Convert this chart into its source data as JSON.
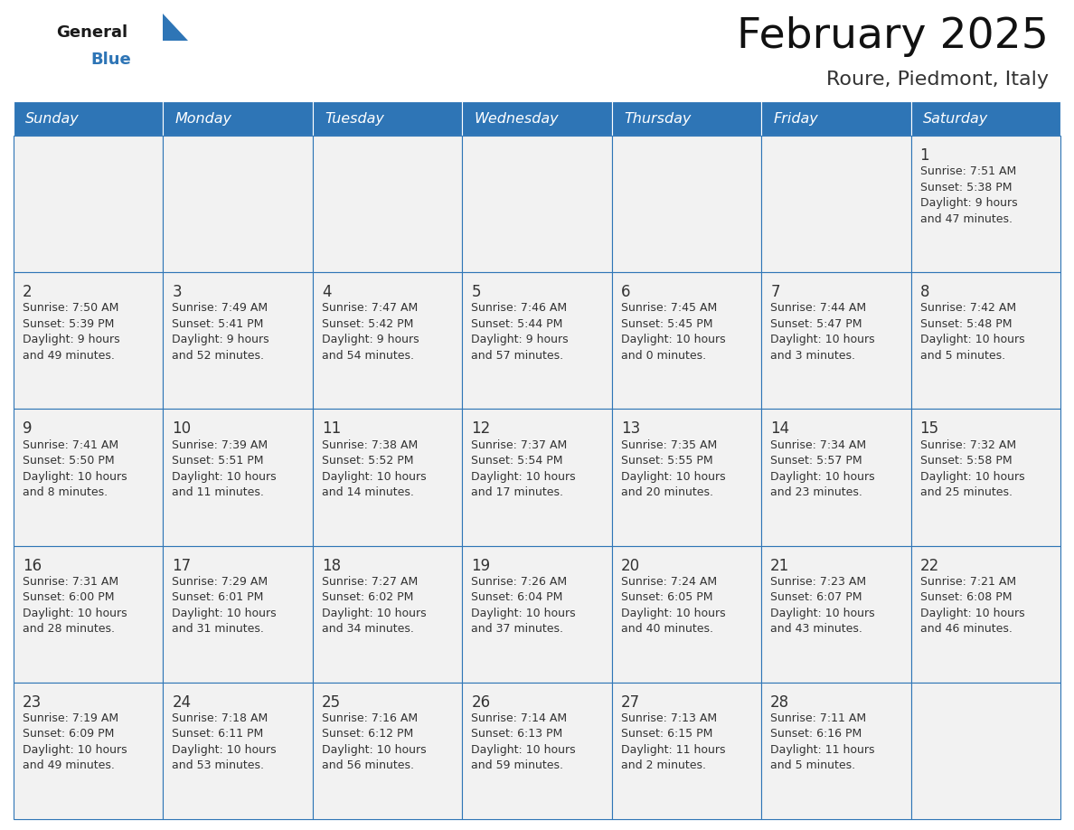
{
  "title": "February 2025",
  "subtitle": "Roure, Piedmont, Italy",
  "header_bg": "#2E75B6",
  "header_text_color": "#FFFFFF",
  "cell_bg": "#F2F2F2",
  "cell_border_color": "#2E75B6",
  "day_number_color": "#333333",
  "cell_text_color": "#333333",
  "days_of_week": [
    "Sunday",
    "Monday",
    "Tuesday",
    "Wednesday",
    "Thursday",
    "Friday",
    "Saturday"
  ],
  "logo_general_color": "#1A1A1A",
  "logo_blue_color": "#2E75B6",
  "calendar_data": [
    [
      null,
      null,
      null,
      null,
      null,
      null,
      {
        "day": 1,
        "sunrise": "7:51 AM",
        "sunset": "5:38 PM",
        "daylight": "9 hours\nand 47 minutes."
      }
    ],
    [
      {
        "day": 2,
        "sunrise": "7:50 AM",
        "sunset": "5:39 PM",
        "daylight": "9 hours\nand 49 minutes."
      },
      {
        "day": 3,
        "sunrise": "7:49 AM",
        "sunset": "5:41 PM",
        "daylight": "9 hours\nand 52 minutes."
      },
      {
        "day": 4,
        "sunrise": "7:47 AM",
        "sunset": "5:42 PM",
        "daylight": "9 hours\nand 54 minutes."
      },
      {
        "day": 5,
        "sunrise": "7:46 AM",
        "sunset": "5:44 PM",
        "daylight": "9 hours\nand 57 minutes."
      },
      {
        "day": 6,
        "sunrise": "7:45 AM",
        "sunset": "5:45 PM",
        "daylight": "10 hours\nand 0 minutes."
      },
      {
        "day": 7,
        "sunrise": "7:44 AM",
        "sunset": "5:47 PM",
        "daylight": "10 hours\nand 3 minutes."
      },
      {
        "day": 8,
        "sunrise": "7:42 AM",
        "sunset": "5:48 PM",
        "daylight": "10 hours\nand 5 minutes."
      }
    ],
    [
      {
        "day": 9,
        "sunrise": "7:41 AM",
        "sunset": "5:50 PM",
        "daylight": "10 hours\nand 8 minutes."
      },
      {
        "day": 10,
        "sunrise": "7:39 AM",
        "sunset": "5:51 PM",
        "daylight": "10 hours\nand 11 minutes."
      },
      {
        "day": 11,
        "sunrise": "7:38 AM",
        "sunset": "5:52 PM",
        "daylight": "10 hours\nand 14 minutes."
      },
      {
        "day": 12,
        "sunrise": "7:37 AM",
        "sunset": "5:54 PM",
        "daylight": "10 hours\nand 17 minutes."
      },
      {
        "day": 13,
        "sunrise": "7:35 AM",
        "sunset": "5:55 PM",
        "daylight": "10 hours\nand 20 minutes."
      },
      {
        "day": 14,
        "sunrise": "7:34 AM",
        "sunset": "5:57 PM",
        "daylight": "10 hours\nand 23 minutes."
      },
      {
        "day": 15,
        "sunrise": "7:32 AM",
        "sunset": "5:58 PM",
        "daylight": "10 hours\nand 25 minutes."
      }
    ],
    [
      {
        "day": 16,
        "sunrise": "7:31 AM",
        "sunset": "6:00 PM",
        "daylight": "10 hours\nand 28 minutes."
      },
      {
        "day": 17,
        "sunrise": "7:29 AM",
        "sunset": "6:01 PM",
        "daylight": "10 hours\nand 31 minutes."
      },
      {
        "day": 18,
        "sunrise": "7:27 AM",
        "sunset": "6:02 PM",
        "daylight": "10 hours\nand 34 minutes."
      },
      {
        "day": 19,
        "sunrise": "7:26 AM",
        "sunset": "6:04 PM",
        "daylight": "10 hours\nand 37 minutes."
      },
      {
        "day": 20,
        "sunrise": "7:24 AM",
        "sunset": "6:05 PM",
        "daylight": "10 hours\nand 40 minutes."
      },
      {
        "day": 21,
        "sunrise": "7:23 AM",
        "sunset": "6:07 PM",
        "daylight": "10 hours\nand 43 minutes."
      },
      {
        "day": 22,
        "sunrise": "7:21 AM",
        "sunset": "6:08 PM",
        "daylight": "10 hours\nand 46 minutes."
      }
    ],
    [
      {
        "day": 23,
        "sunrise": "7:19 AM",
        "sunset": "6:09 PM",
        "daylight": "10 hours\nand 49 minutes."
      },
      {
        "day": 24,
        "sunrise": "7:18 AM",
        "sunset": "6:11 PM",
        "daylight": "10 hours\nand 53 minutes."
      },
      {
        "day": 25,
        "sunrise": "7:16 AM",
        "sunset": "6:12 PM",
        "daylight": "10 hours\nand 56 minutes."
      },
      {
        "day": 26,
        "sunrise": "7:14 AM",
        "sunset": "6:13 PM",
        "daylight": "10 hours\nand 59 minutes."
      },
      {
        "day": 27,
        "sunrise": "7:13 AM",
        "sunset": "6:15 PM",
        "daylight": "11 hours\nand 2 minutes."
      },
      {
        "day": 28,
        "sunrise": "7:11 AM",
        "sunset": "6:16 PM",
        "daylight": "11 hours\nand 5 minutes."
      },
      null
    ]
  ],
  "fig_width": 11.88,
  "fig_height": 9.18,
  "dpi": 100
}
